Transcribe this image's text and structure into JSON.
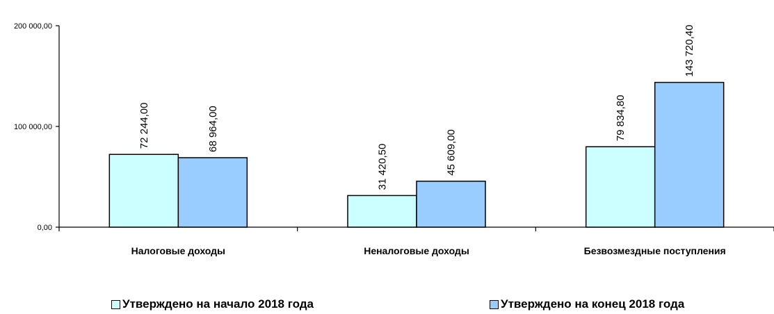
{
  "chart_data": {
    "type": "bar",
    "categories": [
      "Налоговые доходы",
      "Неналоговые доходы",
      "Безвозмездные поступления"
    ],
    "series": [
      {
        "name": "Утверждено на начало 2018 года",
        "values": [
          72244.0,
          31420.5,
          79834.8
        ],
        "labels": [
          "72 244,00",
          "31 420,50",
          "79 834,80"
        ],
        "color": "#ccffff"
      },
      {
        "name": "Утверждено на конец 2018 года",
        "values": [
          68964.0,
          45609.0,
          143720.4
        ],
        "labels": [
          "68 964,00",
          "45 609,00",
          "143 720,40"
        ],
        "color": "#99ccff"
      }
    ],
    "yticks": [
      "0,00",
      "100 000,00",
      "200 000,00"
    ],
    "ytick_values": [
      0,
      100000,
      200000
    ],
    "ylim": [
      0,
      200000
    ],
    "legend_position": "bottom",
    "grid": false
  }
}
